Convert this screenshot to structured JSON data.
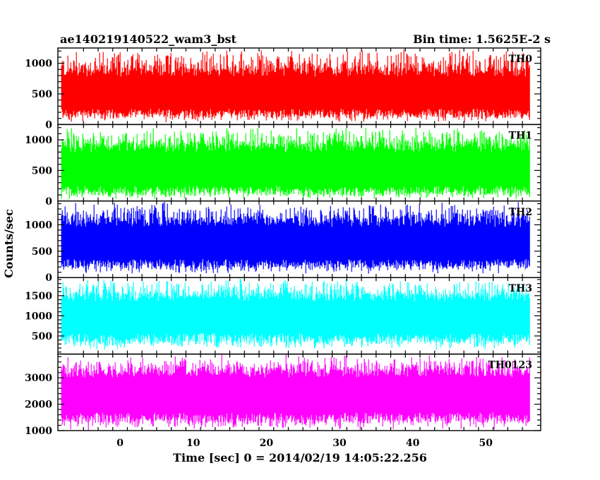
{
  "header": {
    "title": "ae140219140522_wam3_bst",
    "bin_time": "Bin time: 1.5625E-2 s"
  },
  "chart_data": {
    "type": "line",
    "xlabel": "Time [sec] 0 = 2014/02/19 14:05:22.256",
    "ylabel": "Counts/sec",
    "xlim": [
      -8.5,
      57.5
    ],
    "data_x_range": [
      -8,
      56
    ],
    "xticks": [
      0,
      10,
      20,
      30,
      40,
      50
    ],
    "grid": false,
    "panels": [
      {
        "name": "TH0",
        "color": "#ff0000",
        "ylim": [
          0,
          1250
        ],
        "yticks": [
          0,
          500,
          1000
        ],
        "band": {
          "min": 30,
          "low": 120,
          "mid": 520,
          "high": 920,
          "max": 1250
        }
      },
      {
        "name": "TH1",
        "color": "#00ff00",
        "ylim": [
          0,
          1250
        ],
        "yticks": [
          0,
          500,
          1000
        ],
        "band": {
          "min": 20,
          "low": 100,
          "mid": 520,
          "high": 950,
          "max": 1230
        }
      },
      {
        "name": "TH2",
        "color": "#0000ff",
        "ylim": [
          0,
          1450
        ],
        "yticks": [
          0,
          500,
          1000
        ],
        "band": {
          "min": 60,
          "low": 200,
          "mid": 640,
          "high": 1130,
          "max": 1450
        }
      },
      {
        "name": "TH3",
        "color": "#00ffff",
        "ylim": [
          50,
          1950
        ],
        "yticks": [
          500,
          1000,
          1500
        ],
        "band": {
          "min": 130,
          "low": 350,
          "mid": 1000,
          "high": 1560,
          "max": 1950
        }
      },
      {
        "name": "TH0123",
        "color": "#ff00ff",
        "ylim": [
          1000,
          3900
        ],
        "yticks": [
          1000,
          2000,
          3000
        ],
        "band": {
          "min": 1000,
          "low": 1350,
          "mid": 2350,
          "high": 3350,
          "max": 3900
        }
      }
    ]
  }
}
